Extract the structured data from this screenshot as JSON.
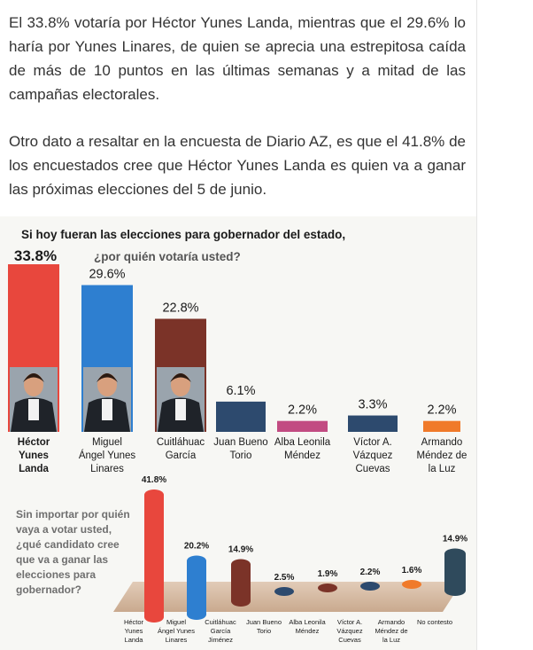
{
  "article": {
    "paragraph_1": "El 33.8% votaría por Héctor Yunes Landa, mientras que el 29.6% lo haría por Yunes Linares, de quien se aprecia una estrepitosa caída de más de 10 puntos en las últimas semanas y a mitad de las campañas electorales.",
    "paragraph_2": "Otro dato a resaltar en la encuesta de Diario AZ, es que el 41.8% de los encuestados cree que Héctor Yunes Landa es quien va a ganar las próximas elecciones del 5 de junio."
  },
  "colors": {
    "red": "#e8473d",
    "blue": "#2e7fd0",
    "maroon": "#7b3328",
    "navy": "#2d4a6e",
    "pink": "#c24b82",
    "orange": "#f07a2a",
    "dark": "#2f4a5c"
  },
  "chart_data": [
    {
      "type": "bar",
      "title": "Si hoy fueran las elecciones para gobernador del estado,",
      "subtitle": "¿por quién votaría usted?",
      "categories": [
        "Héctor Yunes Landa",
        "Miguel Ángel Yunes Linares",
        "Cuitláhuac García",
        "Juan Bueno Torio",
        "Alba Leonila Méndez",
        "Víctor A. Vázquez Cuevas",
        "Armando Méndez de la Luz"
      ],
      "category_lines": [
        [
          "Héctor",
          "Yunes",
          "Landa"
        ],
        [
          "Miguel",
          "Ángel Yunes",
          "Linares"
        ],
        [
          "Cuitláhuac",
          "García"
        ],
        [
          "Juan Bueno",
          "Torio"
        ],
        [
          "Alba Leonila",
          "Méndez"
        ],
        [
          "Víctor A.",
          "Vázquez",
          "Cuevas"
        ],
        [
          "Armando",
          "Méndez de",
          "la Luz"
        ]
      ],
      "values": [
        33.8,
        29.6,
        22.8,
        6.1,
        2.2,
        3.3,
        2.2
      ],
      "value_labels": [
        "33.8%",
        "29.6%",
        "22.8%",
        "6.1%",
        "2.2%",
        "3.3%",
        "2.2%"
      ],
      "candidate_photos": [
        true,
        true,
        true,
        false,
        false,
        false,
        false
      ],
      "ylim": [
        0,
        33.8
      ]
    },
    {
      "type": "bar",
      "question_lines": [
        "Sin importar por quién",
        "vaya a votar usted,",
        "¿qué candidato cree",
        "que va a ganar las",
        "elecciones para",
        "gobernador?"
      ],
      "categories": [
        "Héctor Yunes Landa",
        "Miguel Ángel Yunes Linares",
        "Cuitláhuac García Jiménez",
        "Juan Bueno Torio",
        "Alba Leonila Méndez",
        "Víctor A. Vázquez Cuevas",
        "Armando Méndez de la Luz",
        "No contesto"
      ],
      "category_lines": [
        [
          "Héctor",
          "Yunes",
          "Landa"
        ],
        [
          "Miguel",
          "Ángel Yunes",
          "Linares"
        ],
        [
          "Cuitláhuac",
          "García",
          "Jiménez"
        ],
        [
          "Juan Bueno",
          "Torio"
        ],
        [
          "Alba Leonila",
          "Méndez"
        ],
        [
          "Víctor A.",
          "Vázquez",
          "Cuevas"
        ],
        [
          "Armando",
          "Méndez de",
          "la Luz"
        ],
        [
          "No contesto"
        ]
      ],
      "values": [
        41.8,
        20.2,
        14.9,
        2.5,
        1.9,
        2.2,
        1.6,
        14.9
      ],
      "value_labels": [
        "41.8%",
        "20.2%",
        "14.9%",
        "2.5%",
        "1.9%",
        "2.2%",
        "1.6%",
        "14.9%"
      ],
      "ylim": [
        0,
        41.8
      ]
    }
  ]
}
